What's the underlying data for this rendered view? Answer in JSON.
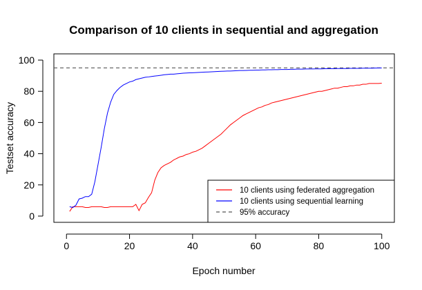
{
  "chart_data": {
    "type": "line",
    "title": "Comparison of 10 clients in sequential and aggregation",
    "xlabel": "Epoch number",
    "ylabel": "Testset accuracy",
    "xlim": [
      -4,
      104
    ],
    "ylim": [
      -4,
      104
    ],
    "xticks": [
      0,
      20,
      40,
      60,
      80,
      100
    ],
    "yticks": [
      0,
      20,
      40,
      60,
      80,
      100
    ],
    "grid": false,
    "legend_position": "bottom-right",
    "reference_line": {
      "label": "95% accuracy",
      "y": 95,
      "color": "#555555",
      "style": "dashed"
    },
    "series": [
      {
        "name": "10 clients using federated aggregation",
        "color": "#ff0000",
        "x": [
          1,
          2,
          3,
          4,
          5,
          6,
          7,
          8,
          9,
          10,
          11,
          12,
          13,
          14,
          15,
          16,
          17,
          18,
          19,
          20,
          21,
          22,
          23,
          24,
          25,
          26,
          27,
          28,
          29,
          30,
          31,
          32,
          33,
          34,
          35,
          36,
          37,
          38,
          39,
          40,
          41,
          42,
          43,
          44,
          45,
          46,
          47,
          48,
          49,
          50,
          51,
          52,
          53,
          54,
          55,
          56,
          57,
          58,
          59,
          60,
          61,
          62,
          63,
          64,
          65,
          66,
          67,
          68,
          69,
          70,
          71,
          72,
          73,
          74,
          75,
          76,
          77,
          78,
          79,
          80,
          81,
          82,
          83,
          84,
          85,
          86,
          87,
          88,
          89,
          90,
          91,
          92,
          93,
          94,
          95,
          96,
          97,
          98,
          99,
          100
        ],
        "y": [
          3,
          6,
          6,
          6,
          6,
          5.5,
          5.5,
          6,
          6,
          6,
          6,
          5.5,
          5.5,
          6,
          6,
          6,
          6,
          6,
          6,
          6,
          6,
          7.5,
          3.5,
          7.5,
          8.5,
          12,
          15,
          23,
          28,
          31,
          32.5,
          33.5,
          34.5,
          36,
          37,
          38,
          38.5,
          39.5,
          40,
          41,
          41.5,
          42.5,
          43.5,
          45,
          46.5,
          48,
          49.5,
          51,
          52.5,
          54.5,
          56.5,
          58.5,
          60,
          61.5,
          63,
          64.5,
          65.5,
          66.5,
          67.5,
          68.5,
          69.5,
          70,
          71,
          71.5,
          72.5,
          73,
          73.5,
          74,
          74.5,
          75,
          75.5,
          76,
          76.5,
          77,
          77.5,
          78,
          78.5,
          79,
          79.5,
          80,
          80,
          80.5,
          81,
          81.5,
          82,
          82,
          82.5,
          83,
          83,
          83.5,
          83.5,
          84,
          84,
          84.5,
          84.5,
          85,
          85,
          85,
          85,
          85.2
        ]
      },
      {
        "name": "10 clients using sequential learning",
        "color": "#0000ff",
        "x": [
          1,
          2,
          3,
          4,
          5,
          6,
          7,
          8,
          9,
          10,
          11,
          12,
          13,
          14,
          15,
          16,
          17,
          18,
          19,
          20,
          21,
          22,
          23,
          24,
          25,
          26,
          27,
          28,
          29,
          30,
          31,
          32,
          33,
          34,
          35,
          36,
          37,
          38,
          39,
          40,
          41,
          42,
          43,
          44,
          45,
          46,
          47,
          48,
          49,
          50,
          51,
          52,
          53,
          54,
          55,
          56,
          57,
          58,
          59,
          60,
          61,
          62,
          63,
          64,
          65,
          66,
          67,
          68,
          69,
          70,
          71,
          72,
          73,
          74,
          75,
          76,
          77,
          78,
          79,
          80,
          81,
          82,
          83,
          84,
          85,
          86,
          87,
          88,
          89,
          90,
          91,
          92,
          93,
          94,
          95,
          96,
          97,
          98,
          99,
          100
        ],
        "y": [
          6,
          5.5,
          7,
          11,
          11.5,
          12.5,
          12.5,
          14,
          22,
          33,
          44,
          56,
          66,
          73,
          78,
          80.5,
          82.5,
          84,
          85,
          86,
          86.5,
          87.5,
          88,
          88.5,
          89,
          89.2,
          89.5,
          89.8,
          90,
          90.3,
          90.6,
          90.8,
          91,
          91,
          91.2,
          91.4,
          91.6,
          91.7,
          91.8,
          91.9,
          92,
          92.1,
          92.2,
          92.3,
          92.4,
          92.5,
          92.6,
          92.7,
          92.8,
          92.9,
          93,
          93,
          93.1,
          93.2,
          93.3,
          93.3,
          93.4,
          93.5,
          93.5,
          93.6,
          93.6,
          93.7,
          93.7,
          93.8,
          93.8,
          93.9,
          93.9,
          94,
          94,
          94,
          94.1,
          94.1,
          94.2,
          94.2,
          94.2,
          94.3,
          94.3,
          94.3,
          94.4,
          94.4,
          94.4,
          94.5,
          94.5,
          94.5,
          94.5,
          94.6,
          94.6,
          94.6,
          94.6,
          94.7,
          94.7,
          94.7,
          94.7,
          94.8,
          94.8,
          94.8,
          94.8,
          94.9,
          94.9,
          95
        ]
      }
    ]
  }
}
